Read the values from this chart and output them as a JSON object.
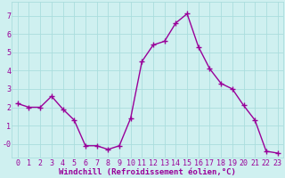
{
  "x": [
    0,
    1,
    2,
    3,
    4,
    5,
    6,
    7,
    8,
    9,
    10,
    11,
    12,
    13,
    14,
    15,
    16,
    17,
    18,
    19,
    20,
    21,
    22,
    23
  ],
  "y": [
    2.2,
    2.0,
    2.0,
    2.6,
    1.9,
    1.3,
    -0.1,
    -0.1,
    -0.3,
    -0.1,
    1.4,
    4.5,
    5.4,
    5.6,
    6.6,
    7.1,
    5.3,
    4.1,
    3.3,
    3.0,
    2.1,
    1.3,
    -0.4,
    -0.5
  ],
  "line_color": "#990099",
  "marker": "+",
  "markersize": 4,
  "linewidth": 1.0,
  "bg_color": "#cff0f0",
  "grid_color": "#aadddd",
  "xlabel": "Windchill (Refroidissement éolien,°C)",
  "xlabel_fontsize": 6.5,
  "xlabel_color": "#990099",
  "ylabel_ticks": [
    0,
    1,
    2,
    3,
    4,
    5,
    6,
    7
  ],
  "ylim": [
    -0.75,
    7.75
  ],
  "xlim": [
    -0.5,
    23.5
  ],
  "tick_fontsize": 6,
  "tick_color": "#990099",
  "xtick_labels": [
    "0",
    "1",
    "2",
    "3",
    "4",
    "5",
    "6",
    "7",
    "8",
    "9",
    "10",
    "11",
    "12",
    "13",
    "14",
    "15",
    "16",
    "17",
    "18",
    "19",
    "20",
    "21",
    "22",
    "23"
  ]
}
